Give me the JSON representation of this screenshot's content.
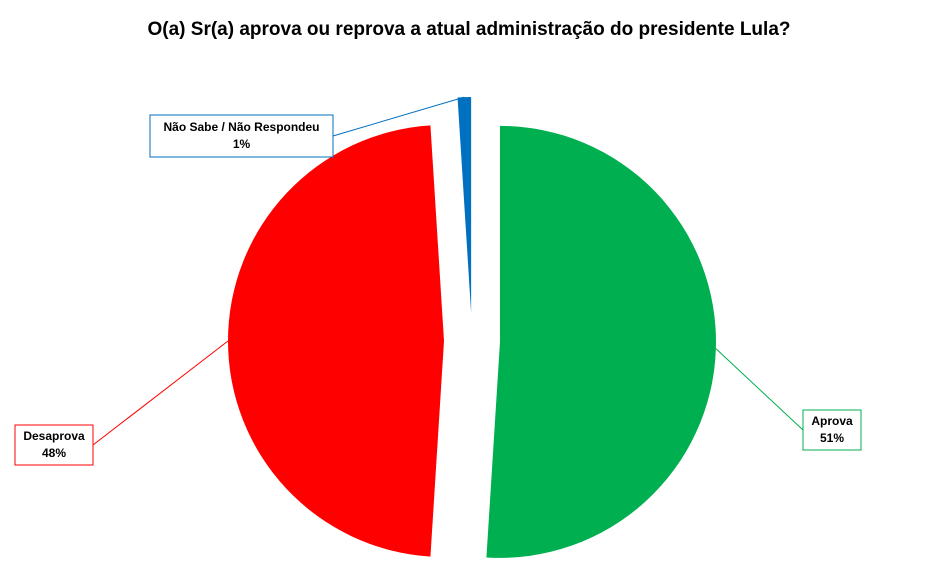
{
  "chart_data": {
    "type": "pie",
    "title": "O(a) Sr(a) aprova ou reprova a atual administração do presidente Lula?",
    "categories": [
      "Aprova",
      "Desaprova",
      "Não Sabe / Não Respondeu"
    ],
    "values": [
      51,
      48,
      1
    ],
    "value_labels": [
      "51%",
      "48%",
      "1%"
    ],
    "colors": [
      "#00b050",
      "#ff0000",
      "#0070c0"
    ]
  }
}
